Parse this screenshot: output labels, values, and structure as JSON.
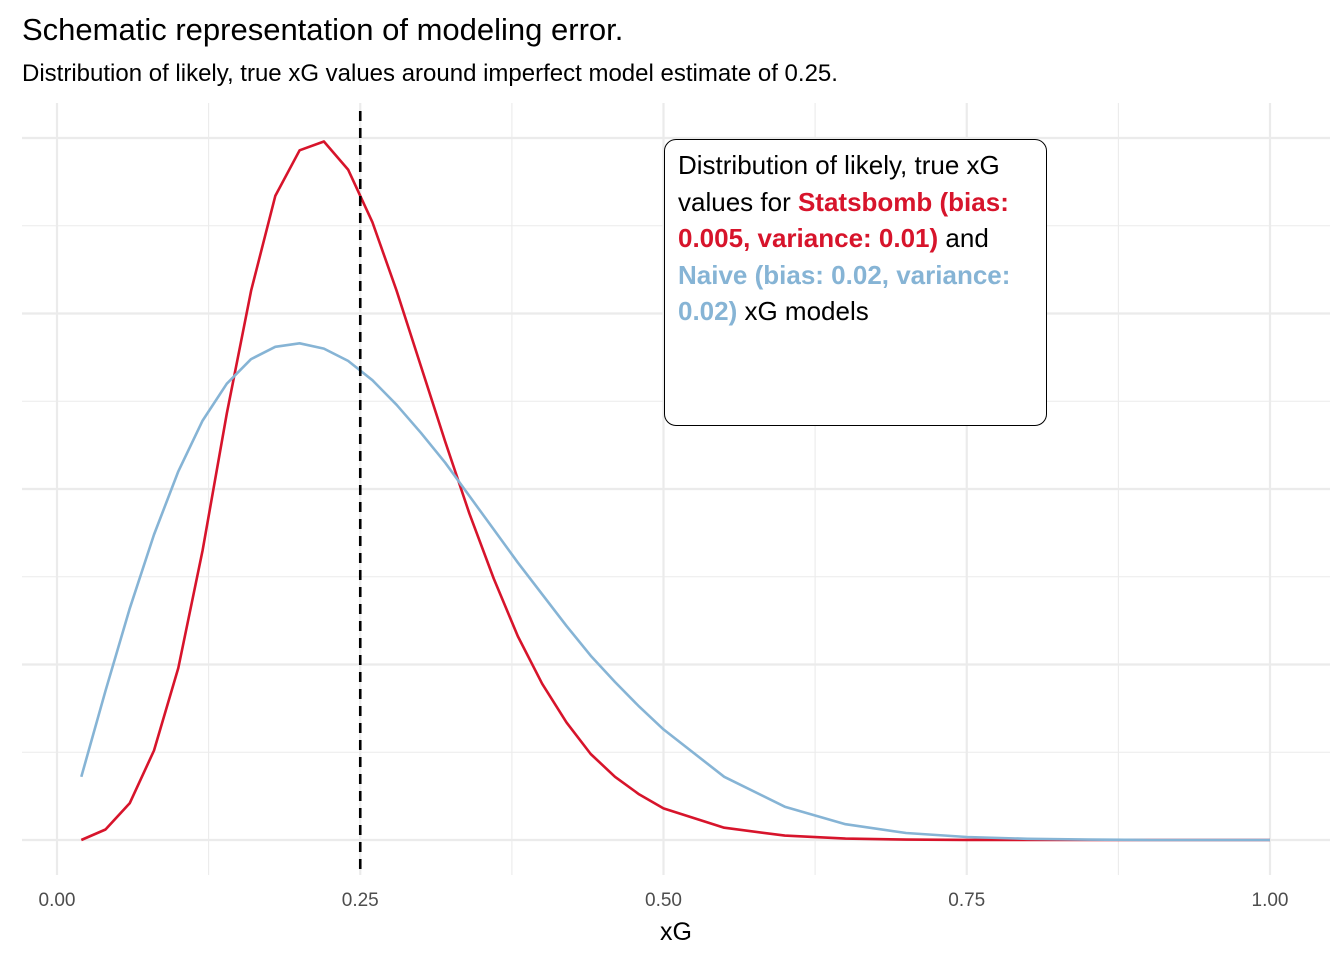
{
  "title": "Schematic representation of modeling error.",
  "subtitle": "Distribution of likely, true xG values around imperfect model estimate of 0.25.",
  "annotation": {
    "text_1": "Distribution of likely, true xG values for ",
    "statsbomb_label": "Statsbomb (bias: 0.005, variance: 0.01)",
    "text_2": " and ",
    "naive_label": "Naive (bias: 0.02, variance: 0.02)",
    "text_3": " xG models"
  },
  "chart_data": {
    "type": "line",
    "xlabel": "xG",
    "ylabel": "",
    "xlim": [
      0.0,
      1.0
    ],
    "x_ticks": [
      "0.00",
      "0.25",
      "0.50",
      "0.75",
      "1.00"
    ],
    "y_tick_labels_shown": false,
    "grid": true,
    "reference_line": {
      "x": 0.25,
      "style": "dashed",
      "color": "#000000"
    },
    "x": [
      0.02,
      0.04,
      0.06,
      0.08,
      0.1,
      0.12,
      0.14,
      0.16,
      0.18,
      0.2,
      0.22,
      0.24,
      0.26,
      0.28,
      0.3,
      0.32,
      0.34,
      0.36,
      0.38,
      0.4,
      0.42,
      0.44,
      0.46,
      0.48,
      0.5,
      0.55,
      0.6,
      0.65,
      0.7,
      0.75,
      0.8,
      0.85,
      0.9,
      0.95,
      1.0
    ],
    "series": [
      {
        "name": "Statsbomb (bias: 0.005, variance: 0.01)",
        "color": "#d7142b",
        "values": [
          0.0,
          0.06,
          0.21,
          0.51,
          0.98,
          1.65,
          2.43,
          3.13,
          3.67,
          3.93,
          3.98,
          3.82,
          3.52,
          3.13,
          2.7,
          2.27,
          1.86,
          1.49,
          1.16,
          0.89,
          0.67,
          0.49,
          0.36,
          0.26,
          0.18,
          0.07,
          0.025,
          0.008,
          0.0025,
          0.0007,
          0.0002,
          0.0,
          0.0,
          0.0,
          0.0
        ]
      },
      {
        "name": "Naive (bias: 0.02, variance: 0.02)",
        "color": "#86b4d5",
        "values": [
          0.36,
          0.85,
          1.32,
          1.74,
          2.1,
          2.39,
          2.6,
          2.74,
          2.81,
          2.83,
          2.8,
          2.73,
          2.62,
          2.48,
          2.32,
          2.15,
          1.96,
          1.77,
          1.58,
          1.4,
          1.22,
          1.05,
          0.9,
          0.76,
          0.63,
          0.36,
          0.19,
          0.09,
          0.04,
          0.017,
          0.007,
          0.002,
          0.0,
          0.0,
          0.0
        ]
      }
    ]
  }
}
